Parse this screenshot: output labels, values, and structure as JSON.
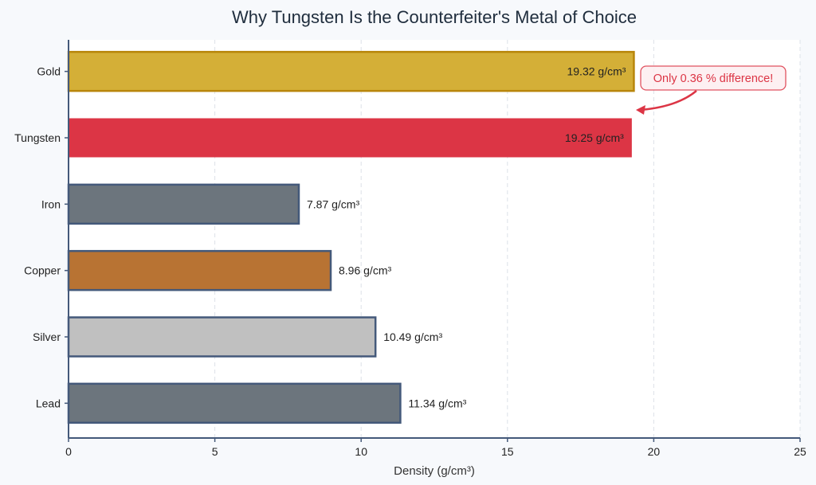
{
  "chart_data": {
    "type": "bar",
    "orientation": "horizontal",
    "title": "Why Tungsten Is the Counterfeiter's Metal of Choice",
    "xlabel": "Density (g/cm³)",
    "ylabel": "",
    "xlim": [
      0,
      25
    ],
    "xticks": [
      0,
      5,
      10,
      15,
      20,
      25
    ],
    "grid": "vertical dashed",
    "categories": [
      "Gold",
      "Tungsten",
      "Iron",
      "Copper",
      "Silver",
      "Lead"
    ],
    "values": [
      19.32,
      19.25,
      7.87,
      8.96,
      10.49,
      11.34
    ],
    "value_labels": [
      "19.32 g/cm³",
      "19.25 g/cm³",
      "7.87 g/cm³",
      "8.96 g/cm³",
      "10.49 g/cm³",
      "11.34 g/cm³"
    ],
    "colors": [
      "#d4af37",
      "#dc3545",
      "#6c757d",
      "#b87333",
      "#c0c0c0",
      "#6c757d"
    ],
    "edge_colors": [
      "#b8860b",
      "none",
      "#44597a",
      "#44597a",
      "#44597a",
      "#44597a"
    ],
    "annotation": {
      "text": "Only 0.36 % difference!",
      "color": "#dc3545",
      "points_to": "between Gold and Tungsten at 19.3"
    }
  }
}
